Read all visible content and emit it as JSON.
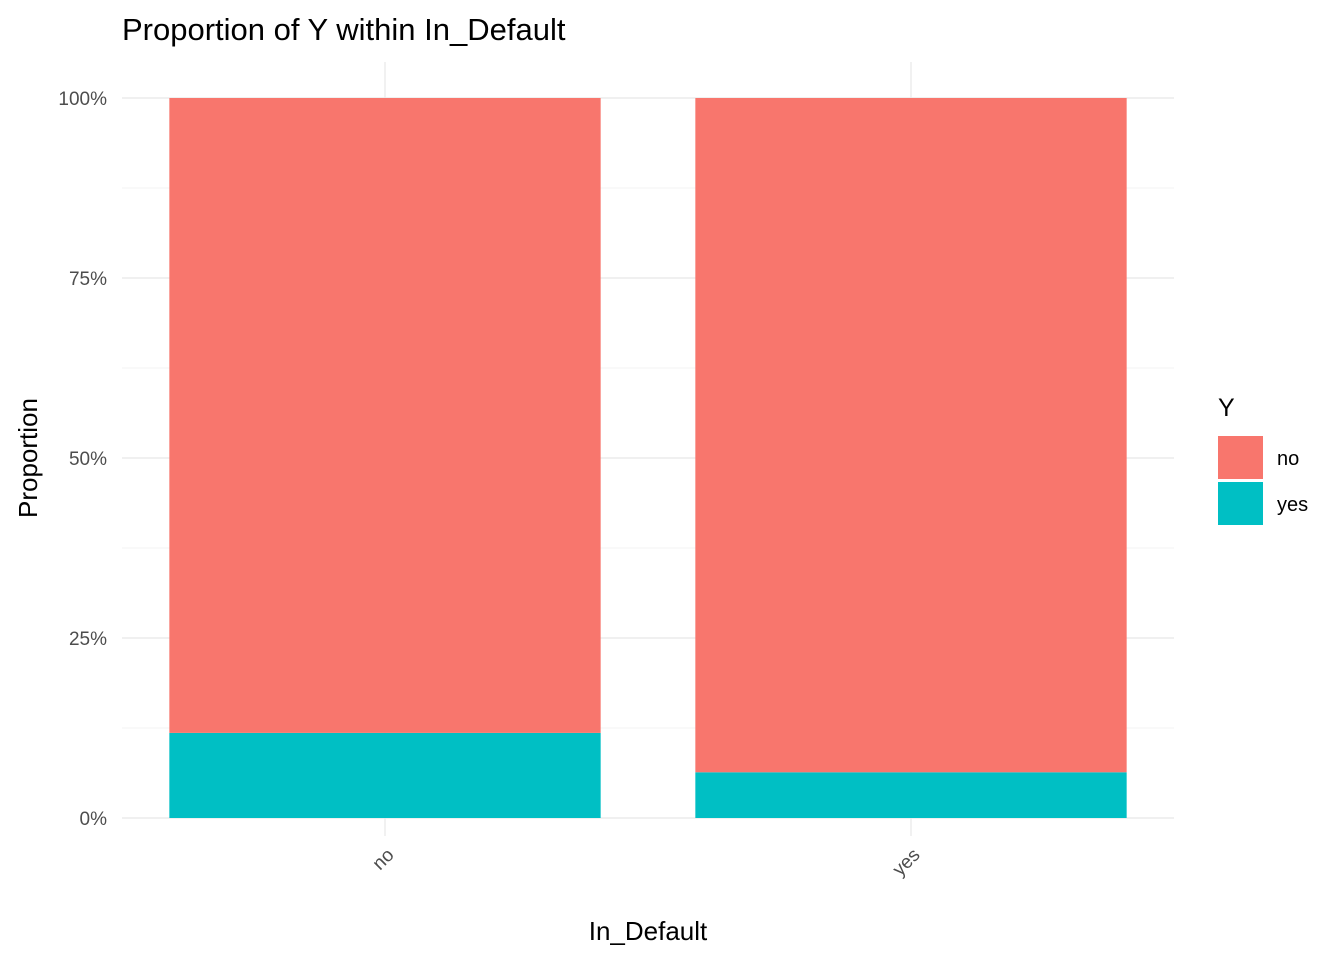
{
  "chart_data": {
    "type": "bar",
    "stacked": true,
    "title": "Proportion of Y within In_Default",
    "xlabel": "In_Default",
    "ylabel": "Proportion",
    "categories": [
      "no",
      "yes"
    ],
    "series": [
      {
        "name": "no",
        "values": [
          0.8818,
          0.9365
        ],
        "color": "#F8766D"
      },
      {
        "name": "yes",
        "values": [
          0.1182,
          0.0635
        ],
        "color": "#00BFC4"
      }
    ],
    "ylim": [
      0,
      1
    ],
    "y_ticks": [
      0,
      0.25,
      0.5,
      0.75,
      1
    ],
    "y_tick_labels": [
      "0%",
      "25%",
      "50%",
      "75%",
      "100%"
    ],
    "grid": true,
    "legend": {
      "title": "Y",
      "position": "right"
    }
  }
}
